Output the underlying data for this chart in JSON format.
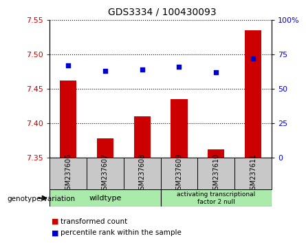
{
  "title": "GDS3334 / 100430093",
  "samples": [
    "GSM237606",
    "GSM237607",
    "GSM237608",
    "GSM237609",
    "GSM237610",
    "GSM237611"
  ],
  "bar_values": [
    7.462,
    7.378,
    7.41,
    7.435,
    7.362,
    7.535
  ],
  "bar_base": 7.35,
  "percentile_values": [
    67,
    63,
    64,
    66,
    62,
    72
  ],
  "left_ylim": [
    7.35,
    7.55
  ],
  "left_yticks": [
    7.35,
    7.4,
    7.45,
    7.5,
    7.55
  ],
  "right_yticks": [
    0,
    25,
    50,
    75,
    100
  ],
  "right_ylim": [
    0,
    100
  ],
  "bar_color": "#cc0000",
  "dot_color": "#0000cc",
  "bg_color": "#c8c8c8",
  "wildtype_label": "wildtype",
  "atf_label": "activating transcriptional\nfactor 2 null",
  "wildtype_bg": "#aaeaaa",
  "atf_bg": "#aaeaaa",
  "legend_red": "transformed count",
  "legend_blue": "percentile rank within the sample",
  "genotype_label": "genotype/variation"
}
